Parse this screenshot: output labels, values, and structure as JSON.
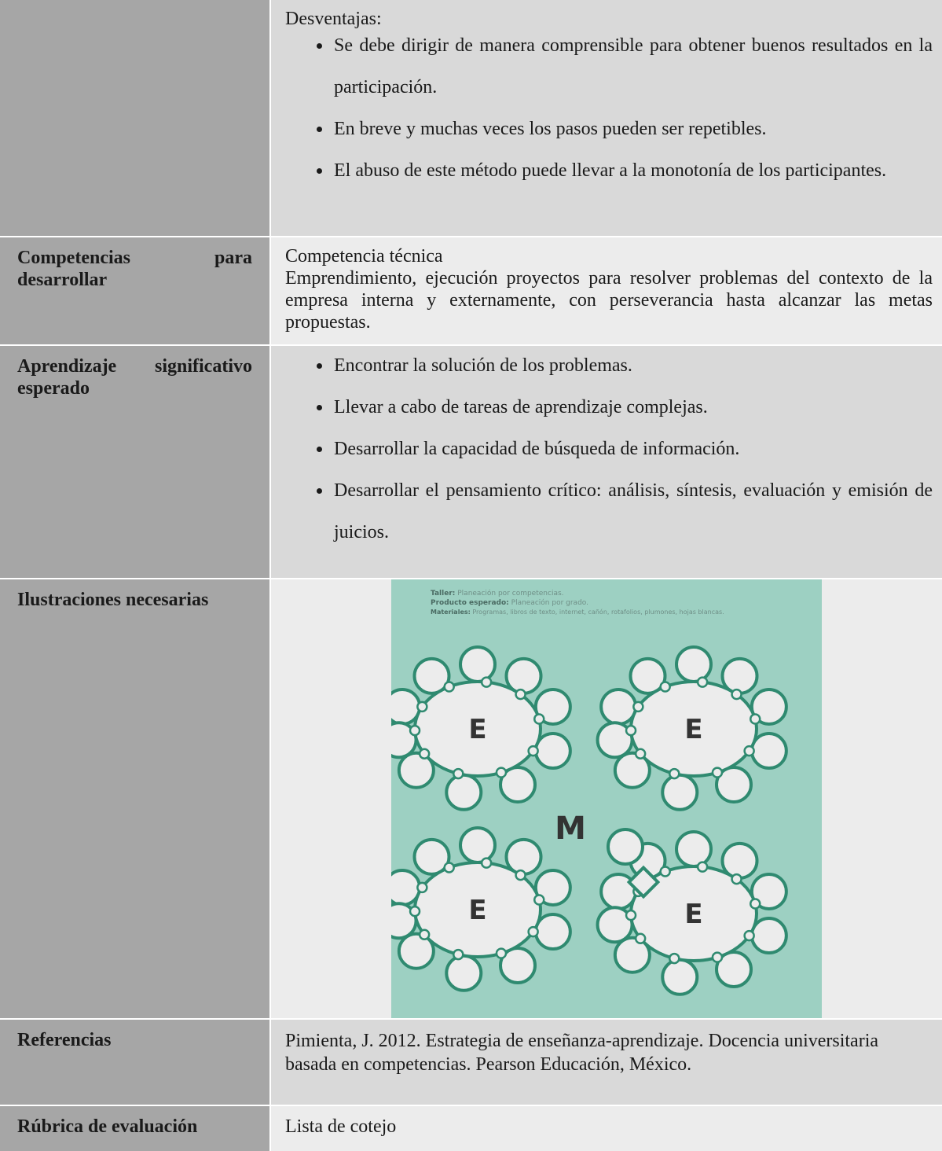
{
  "rows": [
    {
      "heading": "Desventajas:",
      "bullets": [
        "Se debe dirigir de manera comprensible para obtener buenos resultados en la participación.",
        "En breve y muchas veces los pasos pueden ser repetibles.",
        "El abuso de este método puede llevar a la monotonía de los participantes."
      ]
    },
    {
      "label": "Competencias para desarrollar",
      "heading": "Competencia técnica",
      "text": "Emprendimiento, ejecución proyectos para resolver problemas del contexto de la empresa interna y externamente, con perseverancia hasta alcanzar las metas propuestas."
    },
    {
      "label": "Aprendizaje significativo esperado",
      "bullets": [
        "Encontrar la solución de los problemas.",
        "Llevar a cabo de tareas de aprendizaje complejas.",
        "Desarrollar la capacidad de búsqueda de información.",
        "Desarrollar el pensamiento crítico: análisis, síntesis, evaluación y emisión de juicios."
      ]
    },
    {
      "label": "Ilustraciones necesarias",
      "illustration": {
        "lines": [
          {
            "label": "Taller:",
            "text": "Planeación por competencias."
          },
          {
            "label": "Producto esperado:",
            "text": "Planeación por grado."
          },
          {
            "label": "Materiales:",
            "text": "Programas, libros de texto, internet, cañón, rotafolios, plumones, hojas blancas."
          }
        ],
        "team_letter": "E",
        "monitor_letter": "M"
      }
    },
    {
      "label": "Referencias",
      "text": "Pimienta, J. 2012. Estrategia de enseñanza-aprendizaje. Docencia universitaria basada en competencias. Pearson Educación, México."
    },
    {
      "label": "Rúbrica de evaluación",
      "text": "Lista de cotejo"
    }
  ]
}
